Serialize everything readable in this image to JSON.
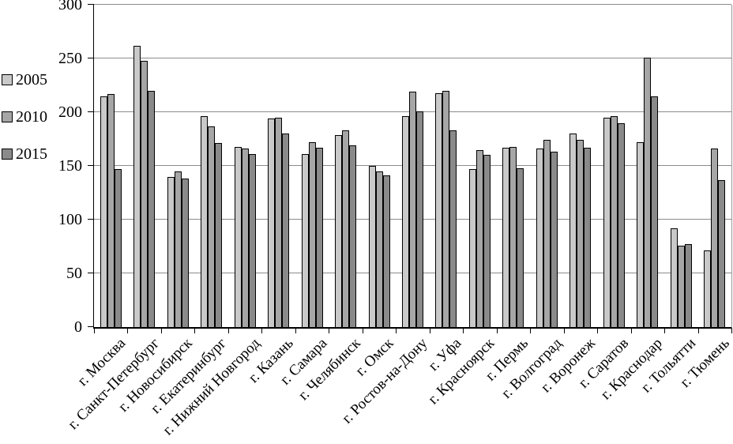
{
  "chart_data": {
    "type": "bar",
    "title": "",
    "xlabel": "",
    "ylabel": "",
    "ylim": [
      0,
      300
    ],
    "yticks": [
      0,
      50,
      100,
      150,
      200,
      250,
      300
    ],
    "grid": true,
    "legend_position": "left",
    "axis_color": "#000000",
    "grid_color": "#8c8c8c",
    "categories": [
      "г. Москва",
      "г. Санкт-Петербург",
      "г. Новосибирск",
      "г. Екатеринбург",
      "г. Нижний Новгород",
      "г. Казань",
      "г. Самара",
      "г. Челябинск",
      "г. Омск",
      "г. Ростов-на-Дону",
      "г. Уфа",
      "г. Красноярск",
      "г. Пермь",
      "г. Волгоград",
      "г. Воронеж",
      "г. Саратов",
      "г. Краснодар",
      "г. Тольятти",
      "г. Тюмень"
    ],
    "series": [
      {
        "name": "2005",
        "color": "#c9c9c9",
        "values": [
          215,
          262,
          140,
          196,
          168,
          194,
          161,
          179,
          150,
          196,
          218,
          147,
          167,
          166,
          180,
          195,
          172,
          92,
          71
        ]
      },
      {
        "name": "2010",
        "color": "#a6a6a6",
        "values": [
          217,
          248,
          145,
          187,
          166,
          195,
          172,
          183,
          145,
          219,
          220,
          165,
          168,
          174,
          174,
          196,
          251,
          76,
          166
        ]
      },
      {
        "name": "2015",
        "color": "#8a8a8a",
        "values": [
          147,
          220,
          138,
          171,
          161,
          180,
          167,
          169,
          141,
          201,
          183,
          160,
          148,
          163,
          167,
          190,
          215,
          77,
          137
        ]
      }
    ]
  }
}
